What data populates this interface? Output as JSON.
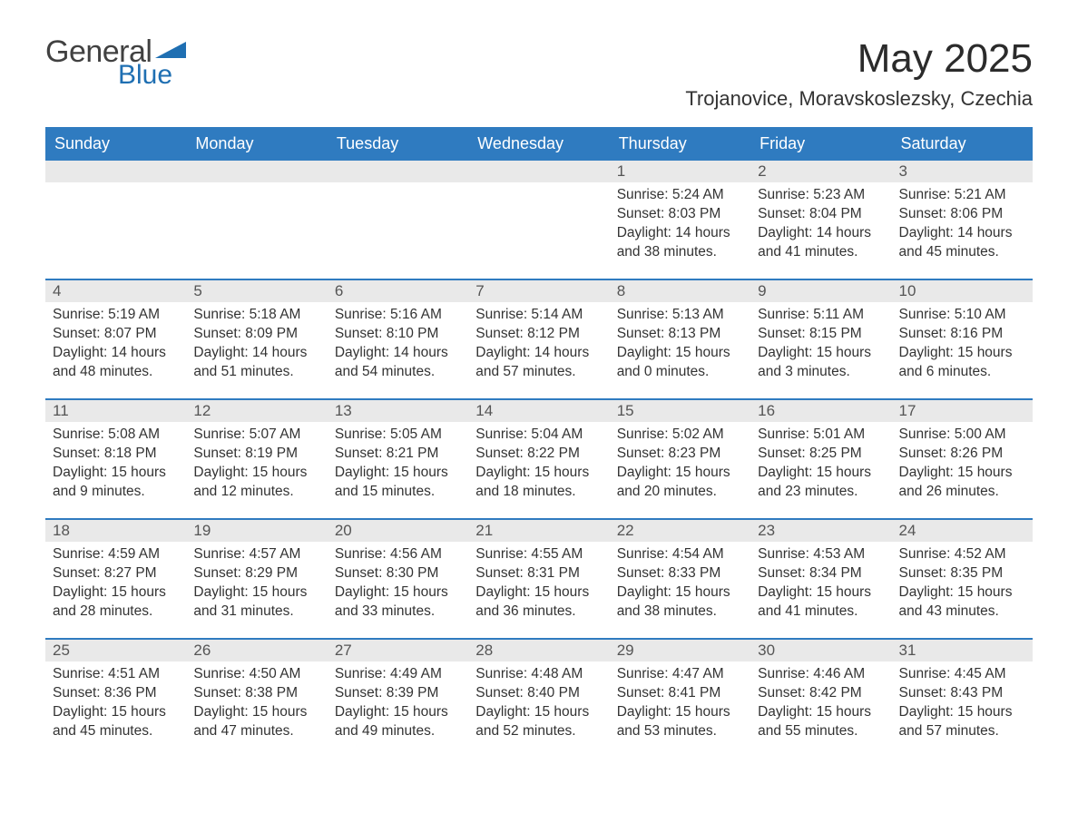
{
  "logo": {
    "word1": "General",
    "word2": "Blue",
    "tri_color": "#1f6fb2"
  },
  "title": "May 2025",
  "location": "Trojanovice, Moravskoslezsky, Czechia",
  "theme": {
    "header_bg": "#2f7bc0",
    "header_text": "#ffffff",
    "daynum_bg": "#e9e9e9",
    "daynum_text": "#555555",
    "week_border": "#2f7bc0",
    "body_text": "#333333",
    "page_bg": "#ffffff"
  },
  "weekdays": [
    "Sunday",
    "Monday",
    "Tuesday",
    "Wednesday",
    "Thursday",
    "Friday",
    "Saturday"
  ],
  "weeks": [
    [
      {
        "day": "",
        "sunrise": "",
        "sunset": "",
        "daylight": ""
      },
      {
        "day": "",
        "sunrise": "",
        "sunset": "",
        "daylight": ""
      },
      {
        "day": "",
        "sunrise": "",
        "sunset": "",
        "daylight": ""
      },
      {
        "day": "",
        "sunrise": "",
        "sunset": "",
        "daylight": ""
      },
      {
        "day": "1",
        "sunrise": "Sunrise: 5:24 AM",
        "sunset": "Sunset: 8:03 PM",
        "daylight": "Daylight: 14 hours and 38 minutes."
      },
      {
        "day": "2",
        "sunrise": "Sunrise: 5:23 AM",
        "sunset": "Sunset: 8:04 PM",
        "daylight": "Daylight: 14 hours and 41 minutes."
      },
      {
        "day": "3",
        "sunrise": "Sunrise: 5:21 AM",
        "sunset": "Sunset: 8:06 PM",
        "daylight": "Daylight: 14 hours and 45 minutes."
      }
    ],
    [
      {
        "day": "4",
        "sunrise": "Sunrise: 5:19 AM",
        "sunset": "Sunset: 8:07 PM",
        "daylight": "Daylight: 14 hours and 48 minutes."
      },
      {
        "day": "5",
        "sunrise": "Sunrise: 5:18 AM",
        "sunset": "Sunset: 8:09 PM",
        "daylight": "Daylight: 14 hours and 51 minutes."
      },
      {
        "day": "6",
        "sunrise": "Sunrise: 5:16 AM",
        "sunset": "Sunset: 8:10 PM",
        "daylight": "Daylight: 14 hours and 54 minutes."
      },
      {
        "day": "7",
        "sunrise": "Sunrise: 5:14 AM",
        "sunset": "Sunset: 8:12 PM",
        "daylight": "Daylight: 14 hours and 57 minutes."
      },
      {
        "day": "8",
        "sunrise": "Sunrise: 5:13 AM",
        "sunset": "Sunset: 8:13 PM",
        "daylight": "Daylight: 15 hours and 0 minutes."
      },
      {
        "day": "9",
        "sunrise": "Sunrise: 5:11 AM",
        "sunset": "Sunset: 8:15 PM",
        "daylight": "Daylight: 15 hours and 3 minutes."
      },
      {
        "day": "10",
        "sunrise": "Sunrise: 5:10 AM",
        "sunset": "Sunset: 8:16 PM",
        "daylight": "Daylight: 15 hours and 6 minutes."
      }
    ],
    [
      {
        "day": "11",
        "sunrise": "Sunrise: 5:08 AM",
        "sunset": "Sunset: 8:18 PM",
        "daylight": "Daylight: 15 hours and 9 minutes."
      },
      {
        "day": "12",
        "sunrise": "Sunrise: 5:07 AM",
        "sunset": "Sunset: 8:19 PM",
        "daylight": "Daylight: 15 hours and 12 minutes."
      },
      {
        "day": "13",
        "sunrise": "Sunrise: 5:05 AM",
        "sunset": "Sunset: 8:21 PM",
        "daylight": "Daylight: 15 hours and 15 minutes."
      },
      {
        "day": "14",
        "sunrise": "Sunrise: 5:04 AM",
        "sunset": "Sunset: 8:22 PM",
        "daylight": "Daylight: 15 hours and 18 minutes."
      },
      {
        "day": "15",
        "sunrise": "Sunrise: 5:02 AM",
        "sunset": "Sunset: 8:23 PM",
        "daylight": "Daylight: 15 hours and 20 minutes."
      },
      {
        "day": "16",
        "sunrise": "Sunrise: 5:01 AM",
        "sunset": "Sunset: 8:25 PM",
        "daylight": "Daylight: 15 hours and 23 minutes."
      },
      {
        "day": "17",
        "sunrise": "Sunrise: 5:00 AM",
        "sunset": "Sunset: 8:26 PM",
        "daylight": "Daylight: 15 hours and 26 minutes."
      }
    ],
    [
      {
        "day": "18",
        "sunrise": "Sunrise: 4:59 AM",
        "sunset": "Sunset: 8:27 PM",
        "daylight": "Daylight: 15 hours and 28 minutes."
      },
      {
        "day": "19",
        "sunrise": "Sunrise: 4:57 AM",
        "sunset": "Sunset: 8:29 PM",
        "daylight": "Daylight: 15 hours and 31 minutes."
      },
      {
        "day": "20",
        "sunrise": "Sunrise: 4:56 AM",
        "sunset": "Sunset: 8:30 PM",
        "daylight": "Daylight: 15 hours and 33 minutes."
      },
      {
        "day": "21",
        "sunrise": "Sunrise: 4:55 AM",
        "sunset": "Sunset: 8:31 PM",
        "daylight": "Daylight: 15 hours and 36 minutes."
      },
      {
        "day": "22",
        "sunrise": "Sunrise: 4:54 AM",
        "sunset": "Sunset: 8:33 PM",
        "daylight": "Daylight: 15 hours and 38 minutes."
      },
      {
        "day": "23",
        "sunrise": "Sunrise: 4:53 AM",
        "sunset": "Sunset: 8:34 PM",
        "daylight": "Daylight: 15 hours and 41 minutes."
      },
      {
        "day": "24",
        "sunrise": "Sunrise: 4:52 AM",
        "sunset": "Sunset: 8:35 PM",
        "daylight": "Daylight: 15 hours and 43 minutes."
      }
    ],
    [
      {
        "day": "25",
        "sunrise": "Sunrise: 4:51 AM",
        "sunset": "Sunset: 8:36 PM",
        "daylight": "Daylight: 15 hours and 45 minutes."
      },
      {
        "day": "26",
        "sunrise": "Sunrise: 4:50 AM",
        "sunset": "Sunset: 8:38 PM",
        "daylight": "Daylight: 15 hours and 47 minutes."
      },
      {
        "day": "27",
        "sunrise": "Sunrise: 4:49 AM",
        "sunset": "Sunset: 8:39 PM",
        "daylight": "Daylight: 15 hours and 49 minutes."
      },
      {
        "day": "28",
        "sunrise": "Sunrise: 4:48 AM",
        "sunset": "Sunset: 8:40 PM",
        "daylight": "Daylight: 15 hours and 52 minutes."
      },
      {
        "day": "29",
        "sunrise": "Sunrise: 4:47 AM",
        "sunset": "Sunset: 8:41 PM",
        "daylight": "Daylight: 15 hours and 53 minutes."
      },
      {
        "day": "30",
        "sunrise": "Sunrise: 4:46 AM",
        "sunset": "Sunset: 8:42 PM",
        "daylight": "Daylight: 15 hours and 55 minutes."
      },
      {
        "day": "31",
        "sunrise": "Sunrise: 4:45 AM",
        "sunset": "Sunset: 8:43 PM",
        "daylight": "Daylight: 15 hours and 57 minutes."
      }
    ]
  ]
}
